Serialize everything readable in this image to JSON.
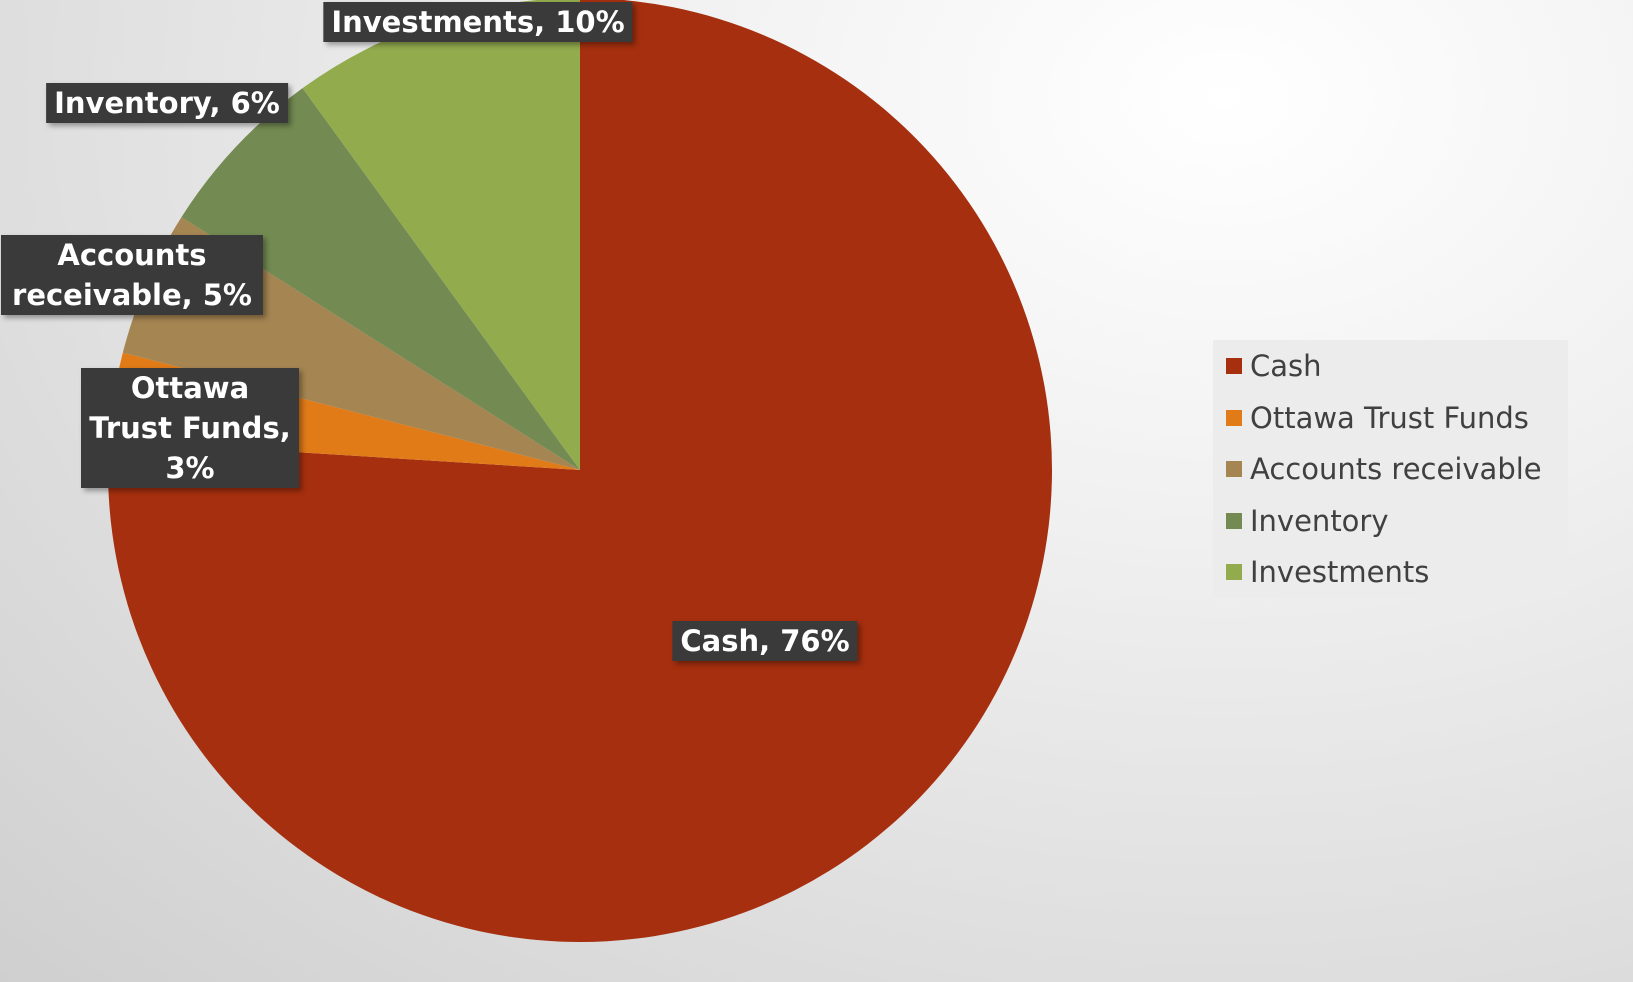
{
  "chart_data": {
    "type": "pie",
    "categories": [
      "Cash",
      "Ottawa Trust Funds",
      "Accounts receivable",
      "Inventory",
      "Investments"
    ],
    "values": [
      76,
      3,
      5,
      6,
      10
    ],
    "value_labels": [
      "Cash, 76%",
      "Ottawa Trust Funds, 3%",
      "Accounts receivable, 5%",
      "Inventory, 6%",
      "Investments, 10%"
    ],
    "colors": [
      "#a52f0f",
      "#e07b18",
      "#a58552",
      "#738b52",
      "#92ab4d"
    ],
    "legend": "right"
  }
}
